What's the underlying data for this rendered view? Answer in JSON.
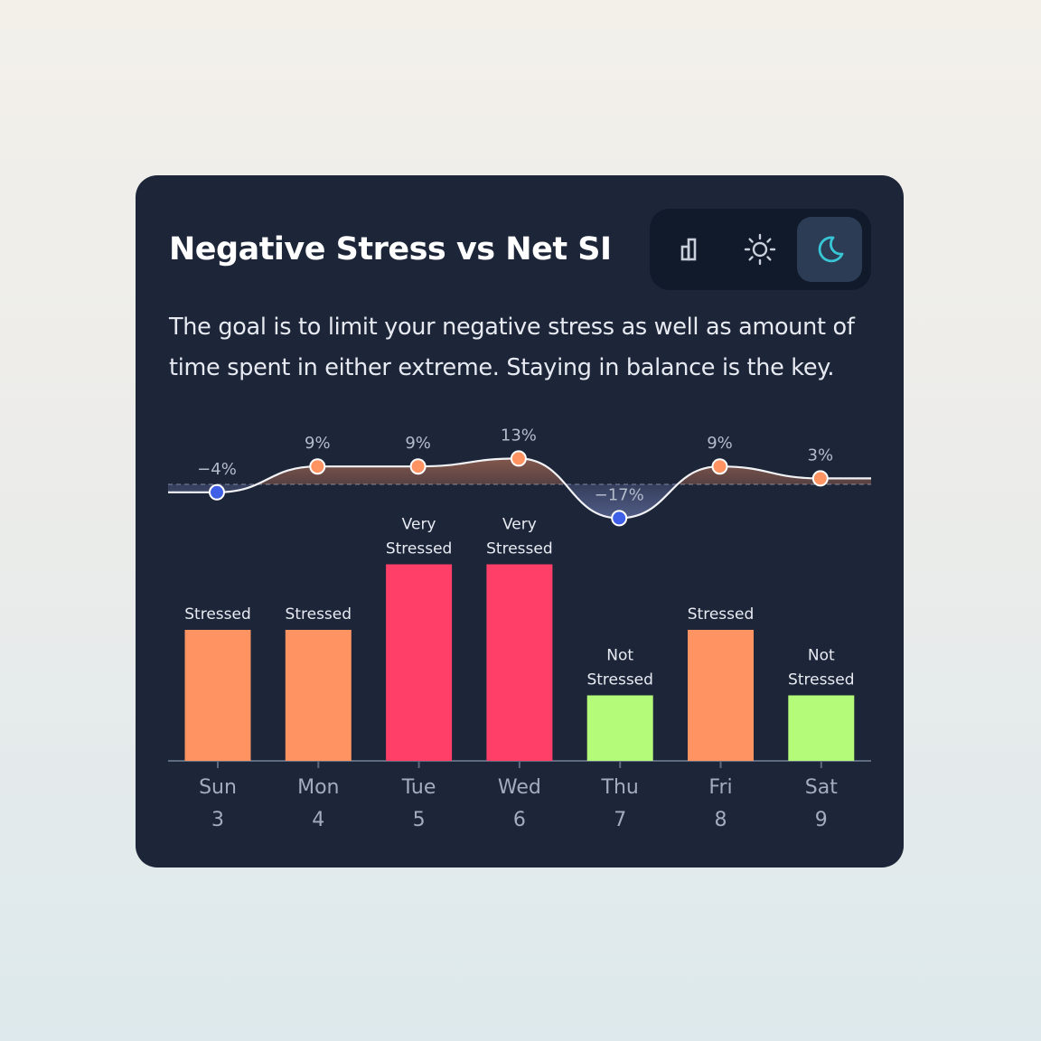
{
  "card": {
    "title": "Negative Stress vs Net SI",
    "description": "The goal is to limit your negative stress as well as amount of time spent in either extreme.  Staying in balance is the key.",
    "toggle": {
      "options": [
        "bar-chart-icon",
        "sun-icon",
        "moon-icon"
      ],
      "selected": "moon-icon"
    }
  },
  "colors": {
    "card_bg": "#1d2539",
    "stressed": "#ff9462",
    "very_stressed": "#ff3f67",
    "not_stressed": "#b4fb7a",
    "positive_point": "#ff9462",
    "negative_point": "#3f5fe6",
    "moon_accent": "#38c6d6"
  },
  "chart_data": [
    {
      "type": "line",
      "categories": [
        "Sun 3",
        "Mon 4",
        "Tue 5",
        "Wed 6",
        "Thu 7",
        "Fri 8",
        "Sat 9"
      ],
      "values": [
        -4,
        9,
        9,
        13,
        -17,
        9,
        3
      ],
      "labels": [
        "−4%",
        "9%",
        "9%",
        "13%",
        "−17%",
        "9%",
        "3%"
      ],
      "baseline": 0
    },
    {
      "type": "bar",
      "days": [
        "Sun",
        "Mon",
        "Tue",
        "Wed",
        "Thu",
        "Fri",
        "Sat"
      ],
      "dates": [
        "3",
        "4",
        "5",
        "6",
        "7",
        "8",
        "9"
      ],
      "levels": [
        2,
        2,
        3,
        3,
        1,
        2,
        1
      ],
      "level_max": 3,
      "status": [
        [
          "Stressed"
        ],
        [
          "Stressed"
        ],
        [
          "Very",
          "Stressed"
        ],
        [
          "Very",
          "Stressed"
        ],
        [
          "Not",
          "Stressed"
        ],
        [
          "Stressed"
        ],
        [
          "Not",
          "Stressed"
        ]
      ],
      "status_key": [
        "stressed",
        "stressed",
        "very_stressed",
        "very_stressed",
        "not_stressed",
        "stressed",
        "not_stressed"
      ]
    }
  ]
}
